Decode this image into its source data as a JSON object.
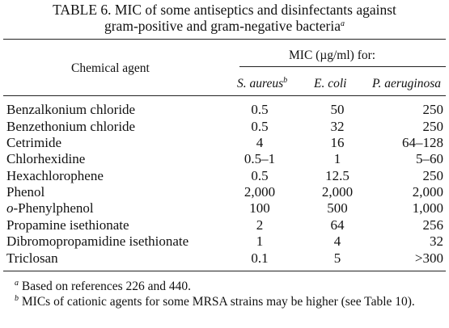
{
  "title": {
    "line1": "TABLE 6. MIC of some antiseptics and disinfectants against",
    "line2": "gram-positive and gram-negative bacteria",
    "line2_mark": "a"
  },
  "header": {
    "agent": "Chemical agent",
    "group": "MIC (µg/ml) for:",
    "col1": "S. aureus",
    "col1_mark": "b",
    "col2": "E. coli",
    "col3": "P. aeruginosa"
  },
  "rows": [
    {
      "agent": "Benzalkonium chloride",
      "s": "0.5",
      "e": "50",
      "p": "250"
    },
    {
      "agent": "Benzethonium chloride",
      "s": "0.5",
      "e": "32",
      "p": "250"
    },
    {
      "agent": "Cetrimide",
      "s": "4",
      "e": "16",
      "p": "64–128"
    },
    {
      "agent": "Chlorhexidine",
      "s": "0.5–1",
      "e": "1",
      "p": "5–60"
    },
    {
      "agent": "Hexachlorophene",
      "s": "0.5",
      "e": "12.5",
      "p": "250"
    },
    {
      "agent": "Phenol",
      "s": "2,000",
      "e": "2,000",
      "p": "2,000"
    },
    {
      "agent_prefix": "o",
      "agent": "-Phenylphenol",
      "s": "100",
      "e": "500",
      "p": "1,000"
    },
    {
      "agent": "Propamine isethionate",
      "s": "2",
      "e": "64",
      "p": "256"
    },
    {
      "agent": "Dibromopropamidine isethionate",
      "s": "1",
      "e": "4",
      "p": "32"
    },
    {
      "agent": "Triclosan",
      "s": "0.1",
      "e": "5",
      "p": ">300"
    }
  ],
  "footnotes": [
    {
      "mark": "a",
      "text": "Based on references 226 and 440."
    },
    {
      "mark": "b",
      "text": "MICs of cationic agents for some MRSA strains may be higher (see Table 10)."
    }
  ]
}
